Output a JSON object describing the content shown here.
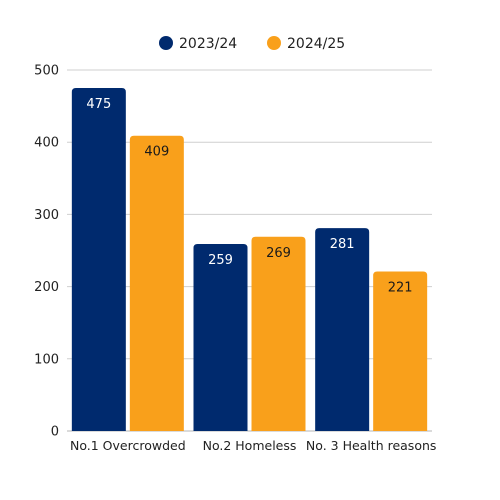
{
  "chart_data": {
    "type": "bar",
    "categories": [
      "No.1 Overcrowded",
      "No.2 Homeless",
      "No. 3 Health reasons"
    ],
    "series": [
      {
        "name": "2023/24",
        "values": [
          475,
          259,
          281
        ],
        "color": "#002a6e",
        "label_color": "#ffffff"
      },
      {
        "name": "2024/25",
        "values": [
          409,
          269,
          221
        ],
        "color": "#f9a01b",
        "label_color": "#1a1a1a"
      }
    ],
    "yticks": [
      0,
      100,
      200,
      300,
      400,
      500
    ],
    "ylim": [
      0,
      500
    ],
    "grid": true,
    "legend_position": "top-center",
    "title": "",
    "xlabel": "",
    "ylabel": ""
  }
}
